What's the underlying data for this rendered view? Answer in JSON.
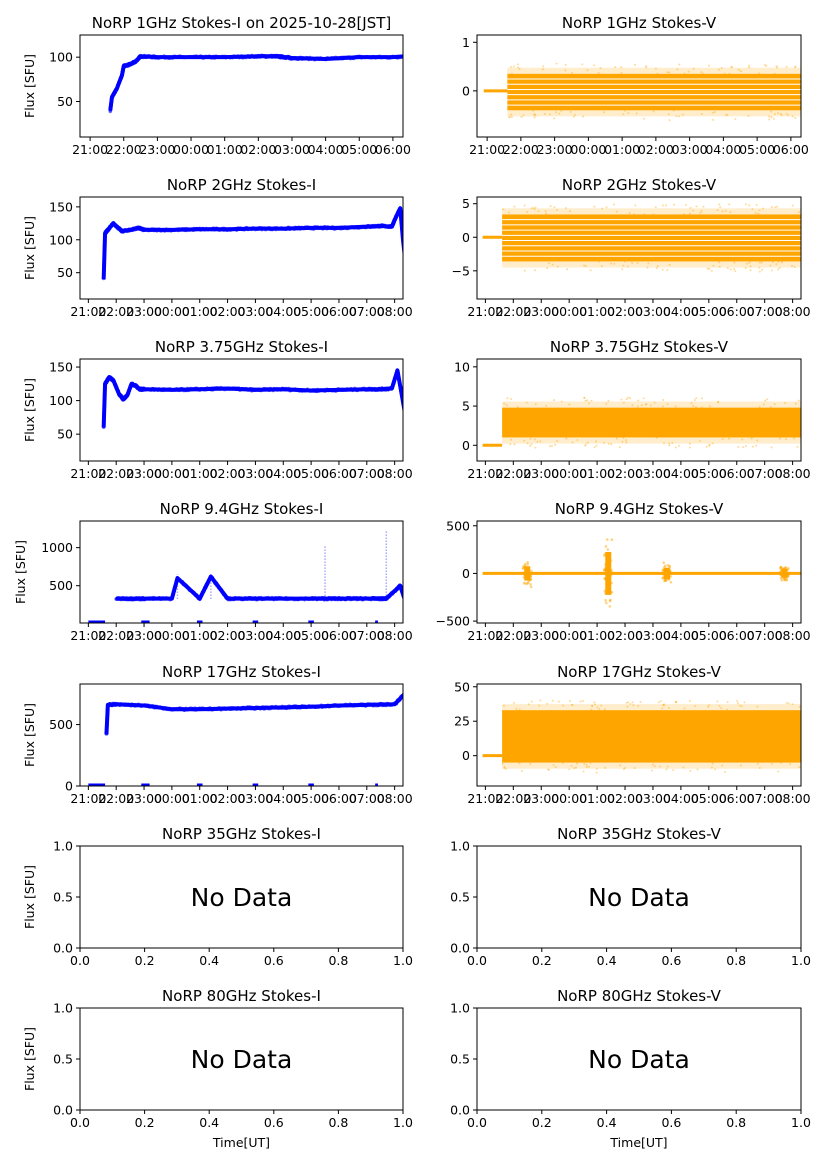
{
  "figure": {
    "xlabel_bottom": "Time[UT]",
    "ylabel": "Flux [SFU]",
    "no_data_text": "No Data",
    "time_ticks": [
      "21:00",
      "22:00",
      "23:00",
      "00:00",
      "01:00",
      "02:00",
      "03:00",
      "04:00",
      "05:00",
      "06:00",
      "07:00",
      "08:00"
    ],
    "colors": {
      "stokes_i": "#0000ff",
      "stokes_v": "#ffa500"
    }
  },
  "chart_data": [
    {
      "id": "1GHz-I",
      "type": "scatter",
      "title": "NoRP 1GHz Stokes-I on 2025-10-28[JST]",
      "ylabel": "Flux [SFU]",
      "ylim": [
        10,
        125
      ],
      "yticks": [
        50,
        100
      ],
      "xlim_hours": [
        -0.3,
        9.3
      ],
      "has_data": true,
      "stokes": "I",
      "series": {
        "hours": [
          0.6,
          0.65,
          0.8,
          0.95,
          1.0,
          1.2,
          1.35,
          1.5,
          2,
          3,
          4,
          5,
          5.5,
          5.8,
          6.0,
          7,
          8,
          9,
          9.7,
          9.75,
          9.85,
          9.9
        ],
        "values": [
          40,
          55,
          65,
          80,
          90,
          92,
          95,
          101,
          100,
          100,
          100,
          101,
          101,
          100,
          99,
          98,
          100,
          100,
          102,
          106,
          103,
          101
        ]
      }
    },
    {
      "id": "1GHz-V",
      "type": "scatter",
      "title": "NoRP 1GHz Stokes-V",
      "ylabel": "",
      "ylim": [
        -0.95,
        1.15
      ],
      "yticks": [
        0,
        1
      ],
      "xlim_hours": [
        -0.3,
        9.3
      ],
      "has_data": true,
      "stokes": "V",
      "series": {
        "band_hours": [
          0.6,
          9.9
        ],
        "band_range": [
          -0.4,
          0.35
        ],
        "flat_hours": [
          [
            -0.1,
            0.6
          ],
          [
            9.9,
            11.85
          ]
        ],
        "flat_value": 0
      }
    },
    {
      "id": "2GHz-I",
      "type": "scatter",
      "title": "NoRP 2GHz Stokes-I",
      "ylabel": "Flux [SFU]",
      "ylim": [
        10,
        165
      ],
      "yticks": [
        50,
        100,
        150
      ],
      "xlim_hours": [
        -0.3,
        11.3
      ],
      "has_data": true,
      "stokes": "I",
      "series": {
        "hours": [
          0.55,
          0.6,
          0.7,
          0.9,
          1.2,
          1.5,
          1.8,
          2,
          3,
          4,
          5,
          6,
          7,
          8,
          9,
          10,
          10.5,
          10.9,
          11.0,
          11.2,
          11.3,
          11.45
        ],
        "values": [
          40,
          110,
          115,
          125,
          113,
          115,
          118,
          115,
          115,
          116,
          116,
          117,
          117,
          118,
          118,
          120,
          121,
          120,
          130,
          148,
          100,
          42
        ]
      }
    },
    {
      "id": "2GHz-V",
      "type": "scatter",
      "title": "NoRP 2GHz Stokes-V",
      "ylabel": "",
      "ylim": [
        -9.2,
        6
      ],
      "yticks": [
        -5,
        0,
        5
      ],
      "xlim_hours": [
        -0.3,
        11.3
      ],
      "has_data": true,
      "stokes": "V",
      "series": {
        "band_hours": [
          0.6,
          11.45
        ],
        "band_range": [
          -3.6,
          3.4
        ],
        "flat_hours": [
          [
            -0.1,
            0.6
          ],
          [
            11.45,
            11.85
          ]
        ],
        "flat_value": 0
      }
    },
    {
      "id": "3.75GHz-I",
      "type": "scatter",
      "title": "NoRP 3.75GHz Stokes-I",
      "ylabel": "Flux [SFU]",
      "ylim": [
        10,
        162
      ],
      "yticks": [
        50,
        100,
        150
      ],
      "xlim_hours": [
        -0.3,
        11.3
      ],
      "has_data": true,
      "stokes": "I",
      "series": {
        "hours": [
          0.55,
          0.6,
          0.75,
          0.9,
          1.1,
          1.25,
          1.4,
          1.55,
          1.7,
          1.85,
          2,
          3,
          4,
          5,
          6,
          7,
          8,
          9,
          10,
          10.5,
          10.9,
          11.1,
          11.25,
          11.45
        ],
        "values": [
          60,
          125,
          135,
          130,
          110,
          102,
          108,
          125,
          122,
          117,
          117,
          116,
          117,
          118,
          116,
          117,
          115,
          116,
          117,
          117,
          118,
          145,
          110,
          62
        ]
      }
    },
    {
      "id": "3.75GHz-V",
      "type": "scatter",
      "title": "NoRP 3.75GHz Stokes-V",
      "ylabel": "",
      "ylim": [
        -2,
        11
      ],
      "yticks": [
        0,
        5,
        10
      ],
      "xlim_hours": [
        -0.3,
        11.3
      ],
      "has_data": true,
      "stokes": "V",
      "series": {
        "band_hours": [
          0.6,
          11.45
        ],
        "band_range": [
          1.0,
          4.8
        ],
        "flat_hours": [
          [
            -0.1,
            0.6
          ],
          [
            11.45,
            11.85
          ]
        ],
        "flat_value": 0
      }
    },
    {
      "id": "9.4GHz-I",
      "type": "scatter",
      "title": "NoRP 9.4GHz Stokes-I",
      "ylabel": "Flux [SFU]",
      "ylim": [
        10,
        1350
      ],
      "yticks": [
        500,
        1000
      ],
      "xlim_hours": [
        -0.3,
        11.3
      ],
      "has_data": true,
      "stokes": "I",
      "series": {
        "hours": [
          1,
          1.5,
          2,
          3,
          3.2,
          4,
          4.4,
          5,
          6,
          7,
          8,
          8.5,
          9,
          9.5,
          10,
          10.5,
          10.7,
          11.2,
          11.45
        ],
        "values": [
          330,
          330,
          330,
          330,
          600,
          330,
          620,
          330,
          330,
          330,
          330,
          330,
          330,
          330,
          330,
          330,
          330,
          500,
          220
        ],
        "spikes": [
          {
            "hour": 3.2,
            "value": 650
          },
          {
            "hour": 4.4,
            "value": 650
          },
          {
            "hour": 8.5,
            "value": 1020
          },
          {
            "hour": 10.7,
            "value": 1220
          }
        ]
      }
    },
    {
      "id": "9.4GHz-V",
      "type": "scatter",
      "title": "NoRP 9.4GHz Stokes-V",
      "ylabel": "",
      "ylim": [
        -520,
        550
      ],
      "yticks": [
        -500,
        0,
        500
      ],
      "xlim_hours": [
        -0.3,
        11.3
      ],
      "has_data": true,
      "stokes": "V",
      "series": {
        "flat_hours": [
          [
            -0.1,
            11.85
          ]
        ],
        "flat_value": 0,
        "bursts": [
          {
            "hour": 4.4,
            "amplitude": 450
          },
          {
            "hour": 6.5,
            "amplitude": 120
          },
          {
            "hour": 1.5,
            "amplitude": 150
          },
          {
            "hour": 10.7,
            "amplitude": 90
          }
        ]
      }
    },
    {
      "id": "17GHz-I",
      "type": "scatter",
      "title": "NoRP 17GHz Stokes-I",
      "ylabel": "Flux [SFU]",
      "ylim": [
        0,
        830
      ],
      "yticks": [
        0,
        500
      ],
      "xlim_hours": [
        -0.3,
        11.3
      ],
      "has_data": true,
      "stokes": "I",
      "series": {
        "hours": [
          0.65,
          0.7,
          1,
          2,
          3,
          4,
          5,
          6,
          7,
          8,
          9,
          10,
          11,
          11.4,
          11.45
        ],
        "values": [
          420,
          660,
          665,
          655,
          625,
          625,
          630,
          635,
          640,
          645,
          655,
          660,
          665,
          760,
          410
        ]
      }
    },
    {
      "id": "17GHz-V",
      "type": "scatter",
      "title": "NoRP 17GHz Stokes-V",
      "ylabel": "",
      "ylim": [
        -22,
        52
      ],
      "yticks": [
        0,
        25,
        50
      ],
      "xlim_hours": [
        -0.3,
        11.3
      ],
      "has_data": true,
      "stokes": "V",
      "series": {
        "band_hours": [
          0.6,
          11.45
        ],
        "band_range": [
          -5,
          33
        ],
        "flat_hours": [
          [
            -0.1,
            0.6
          ],
          [
            11.45,
            11.85
          ]
        ],
        "flat_value": 0
      }
    },
    {
      "id": "35GHz-I",
      "type": "scatter",
      "title": "NoRP 35GHz Stokes-I",
      "ylabel": "Flux [SFU]",
      "ylim": [
        0,
        1
      ],
      "yticks": [
        "0.0",
        "0.5",
        "1.0"
      ],
      "xticks": [
        "0.0",
        "0.2",
        "0.4",
        "0.6",
        "0.8",
        "1.0"
      ],
      "has_data": false
    },
    {
      "id": "35GHz-V",
      "type": "scatter",
      "title": "NoRP 35GHz Stokes-V",
      "ylabel": "",
      "ylim": [
        0,
        1
      ],
      "yticks": [
        "0.0",
        "0.5",
        "1.0"
      ],
      "xticks": [
        "0.0",
        "0.2",
        "0.4",
        "0.6",
        "0.8",
        "1.0"
      ],
      "has_data": false
    },
    {
      "id": "80GHz-I",
      "type": "scatter",
      "title": "NoRP 80GHz Stokes-I",
      "ylabel": "Flux [SFU]",
      "xlabel": "Time[UT]",
      "ylim": [
        0,
        1
      ],
      "yticks": [
        "0.0",
        "0.5",
        "1.0"
      ],
      "xticks": [
        "0.0",
        "0.2",
        "0.4",
        "0.6",
        "0.8",
        "1.0"
      ],
      "has_data": false
    },
    {
      "id": "80GHz-V",
      "type": "scatter",
      "title": "NoRP 80GHz Stokes-V",
      "ylabel": "",
      "xlabel": "Time[UT]",
      "ylim": [
        0,
        1
      ],
      "yticks": [
        "0.0",
        "0.5",
        "1.0"
      ],
      "xticks": [
        "0.0",
        "0.2",
        "0.4",
        "0.6",
        "0.8",
        "1.0"
      ],
      "has_data": false
    }
  ]
}
